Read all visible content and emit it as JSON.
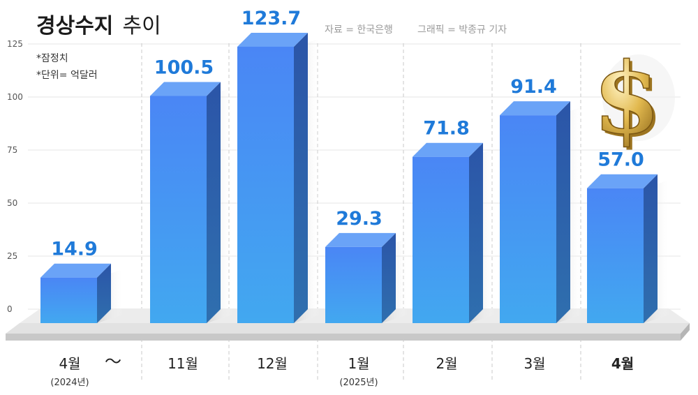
{
  "header": {
    "title_bold": "경상수지",
    "title_rest": "추이",
    "source": "자료 = 한국은행",
    "credit": "그래픽 = 박종규 기자"
  },
  "notes": [
    "*잠정치",
    "*단위= 억달러"
  ],
  "range_separator": "～",
  "colors": {
    "bar_front_top": "#4a86f5",
    "bar_front_bottom": "#42a8f0",
    "bar_side": "#2d5fb0",
    "bar_top": "#6aa3f7",
    "value_label": "#1f7ad9",
    "floor": "#e8e8e8"
  },
  "icons": [
    "dollar-icon"
  ],
  "chart_data": {
    "type": "bar",
    "title": "경상수지 추이",
    "unit": "억달러",
    "ylim": [
      0,
      125
    ],
    "yticks": [
      0,
      25,
      50,
      75,
      100,
      125
    ],
    "grid": true,
    "categories": [
      "4월",
      "11월",
      "12월",
      "1월",
      "2월",
      "3월",
      "4월"
    ],
    "category_sublabels": [
      "(2024년)",
      "",
      "",
      "(2025년)",
      "",
      "",
      ""
    ],
    "values": [
      14.9,
      100.5,
      123.7,
      29.3,
      71.8,
      91.4,
      57.0
    ],
    "value_labels": [
      "14.9",
      "100.5",
      "123.7",
      "29.3",
      "71.8",
      "91.4",
      "57.0"
    ]
  }
}
